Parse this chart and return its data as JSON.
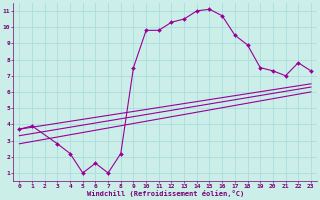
{
  "bg_color": "#cceee8",
  "grid_color": "#aadddd",
  "line_color": "#990099",
  "xlabel": "Windchill (Refroidissement éolien,°C)",
  "xlim": [
    -0.5,
    23.5
  ],
  "ylim": [
    0.5,
    11.5
  ],
  "xticks": [
    0,
    1,
    2,
    3,
    4,
    5,
    6,
    7,
    8,
    9,
    10,
    11,
    12,
    13,
    14,
    15,
    16,
    17,
    18,
    19,
    20,
    21,
    22,
    23
  ],
  "yticks": [
    1,
    2,
    3,
    4,
    5,
    6,
    7,
    8,
    9,
    10,
    11
  ],
  "curve1_x": [
    0,
    1,
    3,
    4,
    5,
    6,
    7,
    8,
    9,
    10,
    11,
    12,
    13,
    14,
    15,
    16,
    17,
    18,
    19,
    20,
    21,
    22,
    23
  ],
  "curve1_y": [
    3.7,
    3.9,
    2.8,
    2.2,
    1.0,
    1.6,
    1.0,
    2.2,
    7.5,
    9.8,
    9.8,
    10.3,
    10.5,
    11.0,
    11.1,
    10.7,
    9.5,
    8.9,
    7.5,
    7.3,
    7.0,
    7.8,
    7.3
  ],
  "line1_x": [
    0,
    23
  ],
  "line1_y": [
    3.7,
    6.5
  ],
  "line2_x": [
    0,
    23
  ],
  "line2_y": [
    3.3,
    6.3
  ],
  "line3_x": [
    0,
    23
  ],
  "line3_y": [
    2.8,
    6.0
  ],
  "tick_fontsize": 4.5,
  "xlabel_fontsize": 5.0,
  "tick_color": "#770077",
  "spine_color": "#770077"
}
